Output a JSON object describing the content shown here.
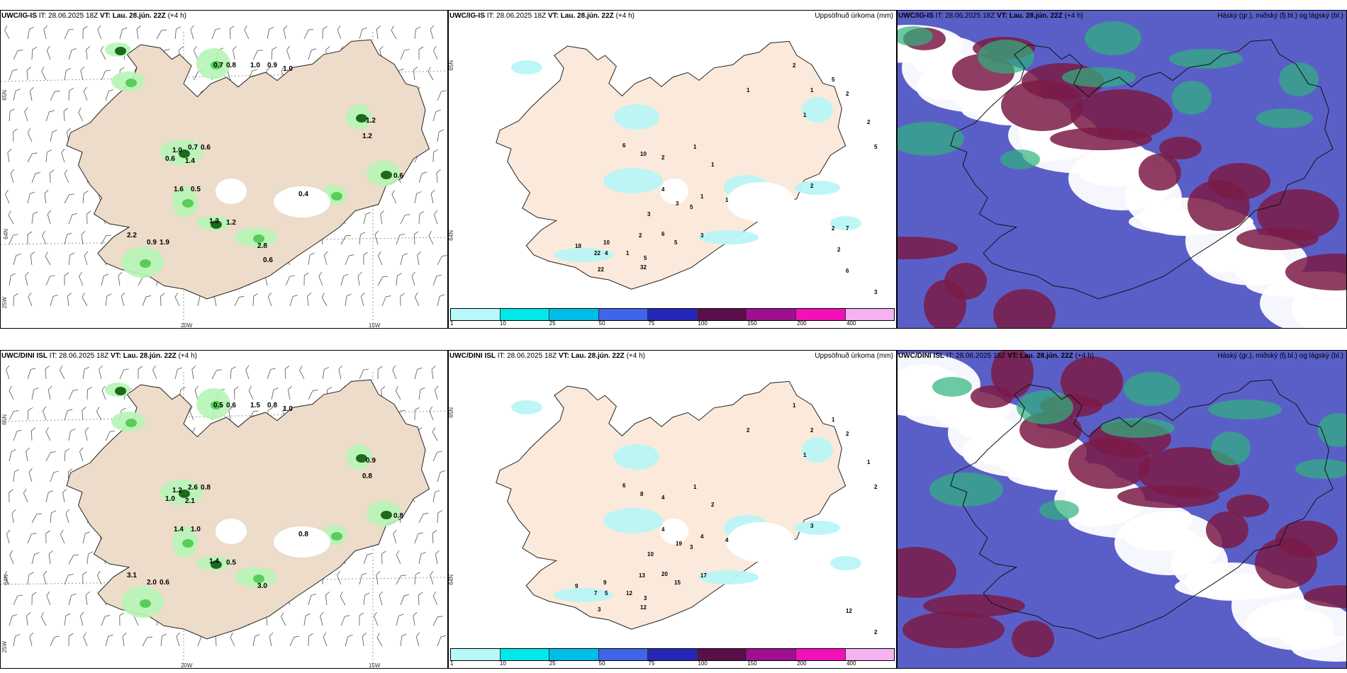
{
  "colors": {
    "land": "#eddcc9",
    "water": "#ffffff",
    "precip_light": "#b6f5b6",
    "precip_med": "#4ec94e",
    "precip_heavy": "#0b5b0b",
    "accum_cyan": "#b9f5f5",
    "cloud_high": "#7b1b46",
    "cloud_mid": "#5a5fc8",
    "cloud_low": "#2fb27c"
  },
  "panels": {
    "top_left": {
      "model": "UWC/IG-IS",
      "it_label": "IT:",
      "it_value": "28.06.2025 18Z",
      "vt_label": "VT:",
      "vt_value": "Lau. 28.jún. 22Z",
      "lead": "(+4 h)",
      "lat_labels": [
        "65N",
        "64N",
        "25W"
      ],
      "lon_labels": [
        "20W",
        "15W"
      ],
      "values": [
        "0.7",
        "0.8",
        "1.0",
        "0.9",
        "1.0",
        "1.2",
        "1.0",
        "0.7",
        "0.6",
        "0.6",
        "1.2",
        "1.4",
        "1.6",
        "0.5",
        "0.4",
        "1.3",
        "2.2",
        "0.9",
        "1.9",
        "0.6",
        "2.8",
        "1.2",
        "0.6"
      ]
    },
    "top_mid": {
      "model": "UWC/IG-IS",
      "it_label": "IT:",
      "it_value": "28.06.2025 18Z",
      "vt_label": "VT:",
      "vt_value": "Lau. 28.jún. 22Z",
      "lead": "(+4 h)",
      "field": "Uppsöfnuð úrkoma (mm)",
      "lat_labels": [
        "65N",
        "64N"
      ],
      "values": [
        "2",
        "1",
        "1",
        "2",
        "2",
        "5",
        "5",
        "2",
        "1",
        "6",
        "10",
        "2",
        "1",
        "1",
        "1",
        "4",
        "1",
        "5",
        "4",
        "1",
        "5",
        "3",
        "2",
        "10",
        "22",
        "3",
        "6",
        "5",
        "3",
        "32",
        "18",
        "22",
        "6",
        "3",
        "2",
        "2",
        "7"
      ]
    },
    "top_right": {
      "model": "UWC/IG-IS",
      "it_label": "IT:",
      "it_value": "28.06.2025 18Z",
      "vt_label": "VT:",
      "vt_value": "Lau. 28.jún. 22Z",
      "lead": "(+4 h)",
      "field": "Háský (gr.), miðský (fj.bl.) og lágský (bl.)"
    },
    "bottom_left": {
      "model": "UWC/DINI ISL",
      "it_label": "IT:",
      "it_value": "28.06.2025 18Z",
      "vt_label": "VT:",
      "vt_value": "Lau. 28.jún. 22Z",
      "lead": "(+4 h)",
      "lat_labels": [
        "65N",
        "64N",
        "25W"
      ],
      "lon_labels": [
        "20W",
        "15W"
      ],
      "values": [
        "0.5",
        "0.6",
        "1.5",
        "0.8",
        "1.0",
        "0.9",
        "1.2",
        "2.6",
        "0.8",
        "1.0",
        "0.8",
        "2.1",
        "1.4",
        "1.0",
        "0.8",
        "1.4",
        "3.1",
        "2.0",
        "0.6",
        "0.8",
        "3.0",
        "0.5"
      ]
    },
    "bottom_mid": {
      "model": "UWC/DINI ISL",
      "it_label": "IT:",
      "it_value": "28.06.2025 18Z",
      "vt_label": "VT:",
      "vt_value": "Lau. 28.jún. 22Z",
      "lead": "(+4 h)",
      "field": "Uppsöfnuð úrkoma (mm)",
      "lat_labels": [
        "65N",
        "64N"
      ],
      "values": [
        "1",
        "2",
        "1",
        "2",
        "1",
        "1",
        "2",
        "3",
        "2",
        "6",
        "8",
        "4",
        "1",
        "2",
        "4",
        "4",
        "4",
        "3",
        "5",
        "12",
        "3",
        "19",
        "13",
        "9",
        "7",
        "10",
        "20",
        "15",
        "17",
        "12",
        "9",
        "3",
        "12",
        "2"
      ]
    },
    "bottom_right": {
      "model": "UWC/DINI ISL",
      "it_label": "IT:",
      "it_value": "28.06.2025 18Z",
      "vt_label": "VT:",
      "vt_value": "Lau. 28.jún. 22Z",
      "lead": "(+4 h)",
      "field": "Háský (gr.), miðský (fj.bl.) og lágský (bl.)"
    }
  },
  "colorbar": {
    "ticks": [
      "1",
      "10",
      "25",
      "50",
      "75",
      "100",
      "150",
      "200",
      "400"
    ],
    "colors": [
      "#b8f8f8",
      "#00e8e8",
      "#00bde8",
      "#3f66e8",
      "#2626b8",
      "#5a0f4a",
      "#a0108e",
      "#f210b8",
      "#f4b2f0"
    ]
  }
}
